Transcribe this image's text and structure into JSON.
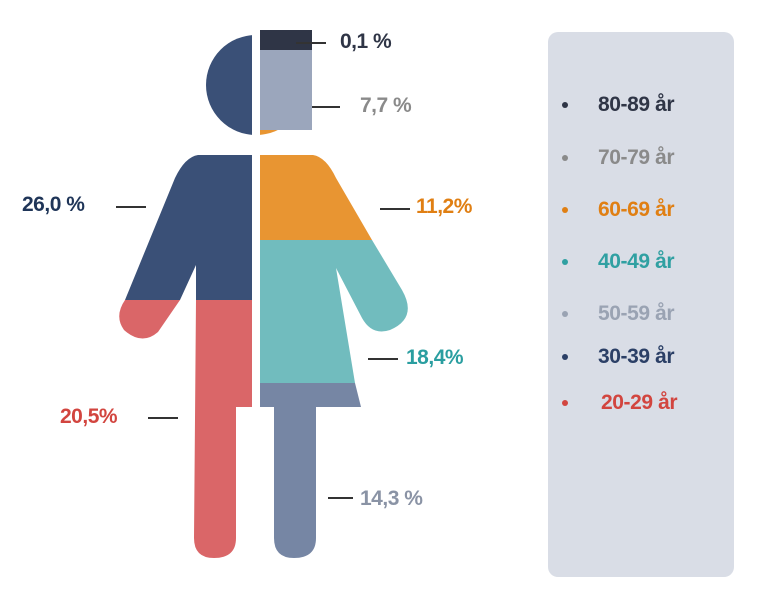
{
  "chart_data": {
    "type": "pie",
    "segments": [
      {
        "label": "0,1 %",
        "group": "80-89 år",
        "value": 0.1,
        "color": "#2f3546"
      },
      {
        "label": "7,7 %",
        "group": "70-79 år",
        "value": 7.7,
        "color": "#9ba6bc"
      },
      {
        "label": "26,0 %",
        "group": "30-39 år",
        "value": 26.0,
        "color": "#3a5077"
      },
      {
        "label": "11,2%",
        "group": "60-69 år",
        "value": 11.2,
        "color": "#e89532"
      },
      {
        "label": "18,4%",
        "group": "40-49 år",
        "value": 18.4,
        "color": "#71bcbe"
      },
      {
        "label": "20,5%",
        "group": "20-29 år",
        "value": 20.5,
        "color": "#da6668"
      },
      {
        "label": "14,3 %",
        "group": "50-59 år",
        "value": 14.3,
        "color": "#7686a4"
      }
    ],
    "legend": [
      {
        "label": "80-89 år",
        "color": "#2f3546"
      },
      {
        "label": "70-79 år",
        "color": "#8a8a8a"
      },
      {
        "label": "60-69 år",
        "color": "#e07f13"
      },
      {
        "label": "40-49 år",
        "color": "#30a0a2"
      },
      {
        "label": "50-59 år",
        "color": "#9aa3b3"
      },
      {
        "label": "30-39 år",
        "color": "#2b3f66"
      },
      {
        "label": "20-29 år",
        "color": "#d2453f"
      }
    ],
    "label_colors": {
      "0,1 %": "#2f3546",
      "7,7 %": "#8a8a8a",
      "26,0 %": "#1f3558",
      "11,2%": "#e07f13",
      "18,4%": "#2a9ea0",
      "20,5%": "#d2453f",
      "14,3 %": "#8a93a5"
    },
    "legend_placement": "right"
  }
}
